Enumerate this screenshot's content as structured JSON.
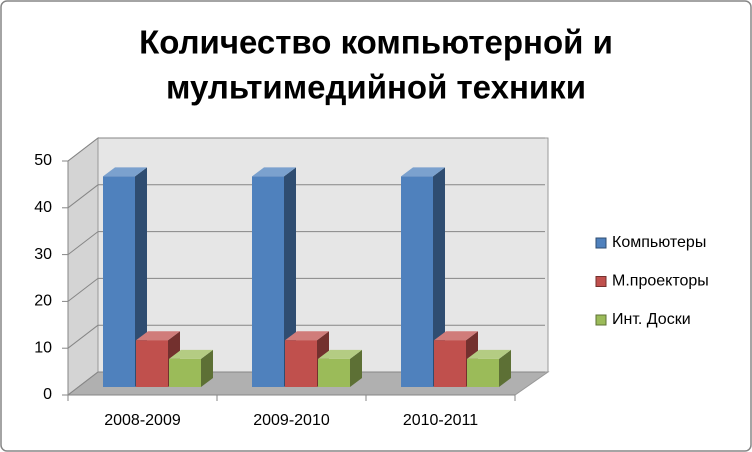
{
  "chart_data": {
    "type": "bar3d",
    "title": [
      "Количество компьютерной и",
      "мультимедийной техники"
    ],
    "categories": [
      "2008-2009",
      "2009-2010",
      "2010-2011"
    ],
    "series": [
      {
        "name": "Компьютеры",
        "color": "#4f81bd",
        "values": [
          45,
          45,
          45
        ]
      },
      {
        "name": "М.проекторы",
        "color": "#c0504d",
        "values": [
          10,
          10,
          10
        ]
      },
      {
        "name": "Инт. Доски",
        "color": "#9bbb59",
        "values": [
          6,
          6,
          6
        ]
      }
    ],
    "ylim": [
      0,
      50
    ],
    "yticks": [
      0,
      10,
      20,
      30,
      40,
      50
    ],
    "grid": true,
    "legend": "right"
  }
}
